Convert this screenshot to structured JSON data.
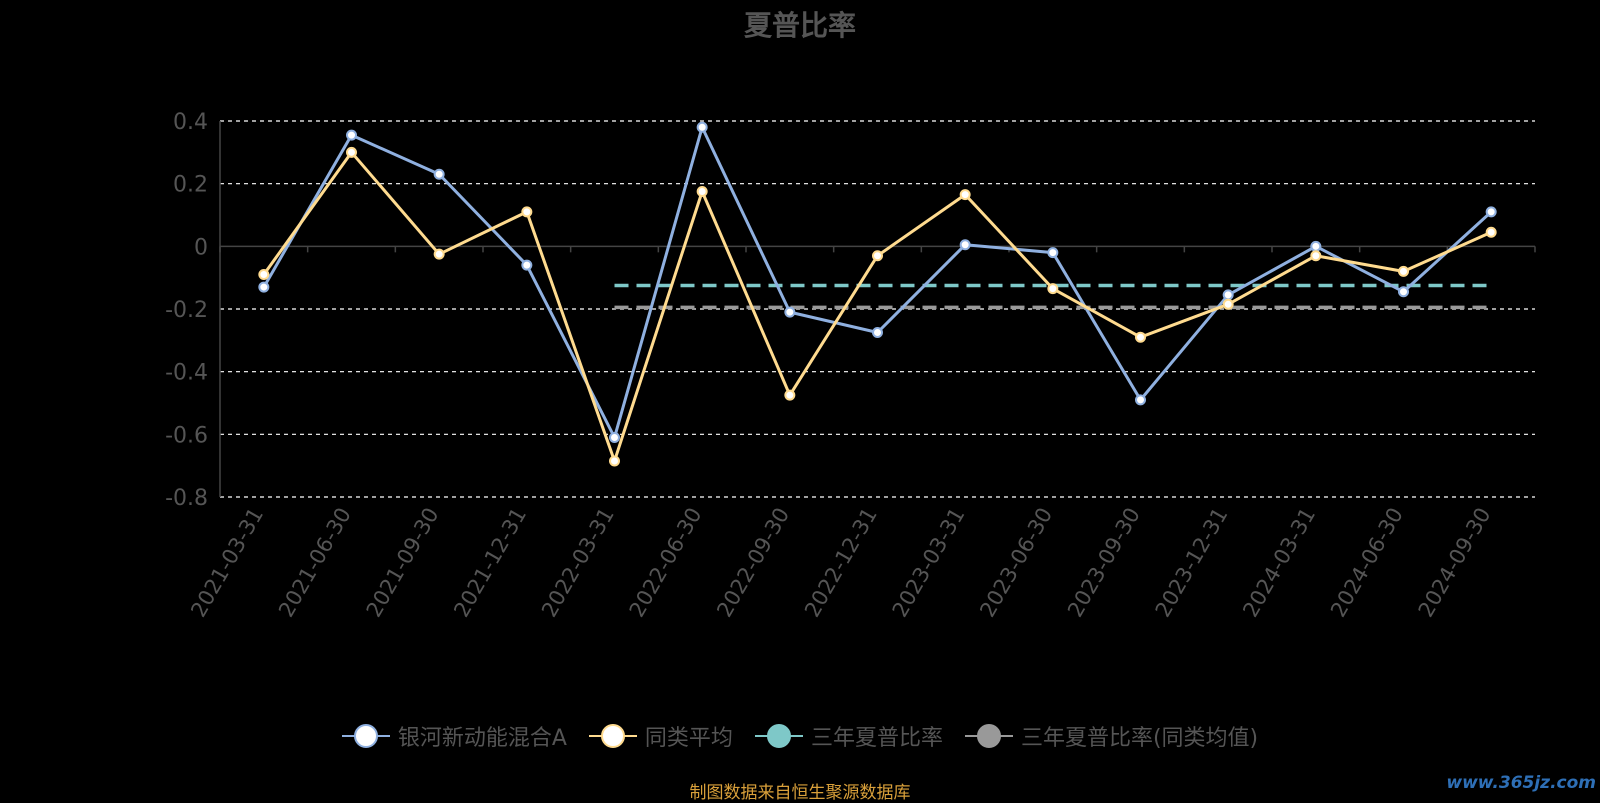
{
  "title": "夏普比率",
  "source_note": "制图数据来自恒生聚源数据库",
  "watermark": "www.365jz.com",
  "legend": [
    {
      "label": "银河新动能混合A",
      "color": "#8fb0e0",
      "fill": "#ffffff"
    },
    {
      "label": "同类平均",
      "color": "#ffdb8f",
      "fill": "#ffffff"
    },
    {
      "label": "三年夏普比率",
      "color": "#7ec8c8",
      "fill": "#7ec8c8"
    },
    {
      "label": "三年夏普比率(同类均值)",
      "color": "#999999",
      "fill": "#999999"
    }
  ],
  "chart_data": {
    "type": "line",
    "title": "夏普比率",
    "categories": [
      "2021-03-31",
      "2021-06-30",
      "2021-09-30",
      "2021-12-31",
      "2022-03-31",
      "2022-06-30",
      "2022-09-30",
      "2022-12-31",
      "2023-03-31",
      "2023-06-30",
      "2023-09-30",
      "2023-12-31",
      "2024-03-31",
      "2024-06-30",
      "2024-09-30"
    ],
    "ylim": [
      -0.8,
      0.4
    ],
    "yticks": [
      0.4,
      0.2,
      0,
      -0.2,
      -0.4,
      -0.6,
      -0.8
    ],
    "ytick_labels": [
      "0.4",
      "0.2",
      "0",
      "-0.2",
      "-0.4",
      "-0.6",
      "-0.8"
    ],
    "grid": true,
    "legend_position": "bottom",
    "series": [
      {
        "name": "银河新动能混合A",
        "color": "#8fb0e0",
        "values": [
          -0.13,
          0.355,
          0.23,
          -0.06,
          -0.61,
          0.38,
          -0.21,
          -0.275,
          0.005,
          -0.02,
          -0.49,
          -0.155,
          0.0,
          -0.145,
          0.11
        ]
      },
      {
        "name": "同类平均",
        "color": "#ffdb8f",
        "values": [
          -0.09,
          0.3,
          -0.025,
          0.11,
          -0.685,
          0.175,
          -0.475,
          -0.03,
          0.165,
          -0.135,
          -0.29,
          -0.185,
          -0.03,
          -0.08,
          0.045
        ]
      },
      {
        "name": "三年夏普比率",
        "color": "#7ec8c8",
        "type": "dashed-hline",
        "value": -0.125,
        "from": "2022-03-31",
        "to": "2024-09-30"
      },
      {
        "name": "三年夏普比率(同类均值)",
        "color": "#999999",
        "type": "dashed-hline",
        "value": -0.195,
        "from": "2022-03-31",
        "to": "2024-09-30"
      }
    ]
  }
}
